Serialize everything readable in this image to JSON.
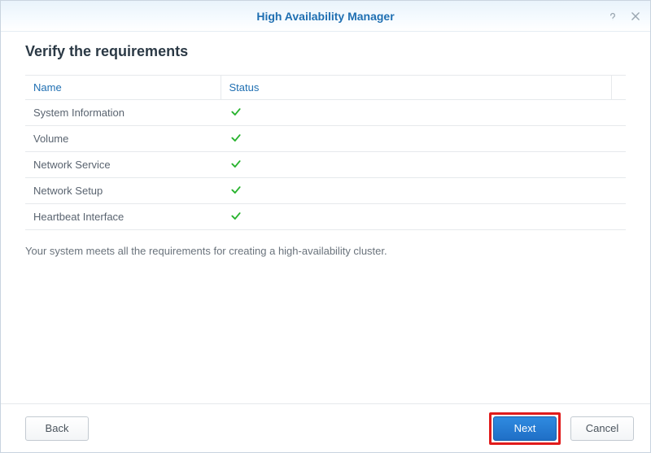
{
  "window": {
    "title": "High Availability Manager"
  },
  "page": {
    "heading": "Verify the requirements",
    "summary": "Your system meets all the requirements for creating a high-availability cluster."
  },
  "table": {
    "columns": {
      "name": "Name",
      "status": "Status"
    },
    "rows": [
      {
        "name": "System Information",
        "status": "ok"
      },
      {
        "name": "Volume",
        "status": "ok"
      },
      {
        "name": "Network Service",
        "status": "ok"
      },
      {
        "name": "Network Setup",
        "status": "ok"
      },
      {
        "name": "Heartbeat Interface",
        "status": "ok"
      }
    ]
  },
  "buttons": {
    "back": "Back",
    "next": "Next",
    "cancel": "Cancel"
  },
  "icons": {
    "check_color": "#28b32e"
  }
}
